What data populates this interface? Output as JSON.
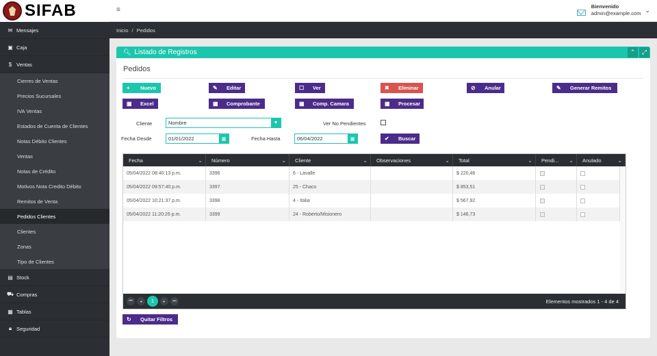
{
  "app": {
    "logo_text": "SIFAB"
  },
  "topbar": {
    "welcome": "Bienvenido",
    "email": "admin@example.com"
  },
  "sidebar": {
    "items": [
      {
        "label": "Mensajes",
        "icon": "envelope-icon"
      },
      {
        "label": "Caja",
        "icon": "cash-icon"
      },
      {
        "label": "Ventas",
        "icon": "dollar-icon"
      },
      {
        "label": "Stock",
        "icon": "chart-icon"
      },
      {
        "label": "Compras",
        "icon": "cart-icon"
      },
      {
        "label": "Tablas",
        "icon": "table-icon"
      },
      {
        "label": "Seguridad",
        "icon": "lock-icon"
      }
    ],
    "ventas_sub": [
      "Cierres de Ventas",
      "Precios Sucursales",
      "IVA Ventas",
      "Estados de Cuenta de Clientes",
      "Notas Débito Clientes",
      "Ventas",
      "Notas de Crédito",
      "Motivos Nota Credito Débito",
      "Remitos de Venta",
      "Pedidos Clientes",
      "Clientes",
      "Zonas",
      "Tipo de Clientes"
    ]
  },
  "breadcrumb": {
    "home": "Inicio",
    "sep": "/",
    "current": "Pedidos"
  },
  "panel": {
    "title": "Listado de Registros",
    "subtitle": "Pedidos"
  },
  "buttons": {
    "nuevo": "Nuevo",
    "editar": "Editar",
    "ver": "Ver",
    "eliminar": "Eliminar",
    "anular": "Anular",
    "generar_remitos": "Generar Remitos",
    "excel": "Excel",
    "comprobante": "Comprobante",
    "comp_camara": "Comp. Camara",
    "procesar": "Procesar",
    "buscar": "Buscar",
    "quitar_filtros": "Quitar Filtros"
  },
  "filters": {
    "cliente_label": "Cliente",
    "cliente_placeholder": "Nombre",
    "ver_no_pendientes_label": "Ver No Pendientes",
    "fecha_desde_label": "Fecha Desde",
    "fecha_desde_value": "01/01/2022",
    "fecha_hasta_label": "Fecha Hasta",
    "fecha_hasta_value": "06/04/2022"
  },
  "grid": {
    "columns": [
      "Fecha",
      "Número",
      "Cliente",
      "Observaciones",
      "Total",
      "Pendi...",
      "Anulado"
    ],
    "rows": [
      {
        "fecha": "05/04/2022 08:40:13 p.m.",
        "numero": "3396",
        "cliente": "6 - Lavalle",
        "obs": "",
        "total": "$ 220,46",
        "pendiente": true,
        "anulado": false
      },
      {
        "fecha": "05/04/2022 09:57:40 p.m.",
        "numero": "3397",
        "cliente": "25 - Chaco",
        "obs": "",
        "total": "$ 853,51",
        "pendiente": true,
        "anulado": false
      },
      {
        "fecha": "05/04/2022 10:21:37 p.m.",
        "numero": "3398",
        "cliente": "4 - Italia",
        "obs": "",
        "total": "$ 567,92",
        "pendiente": true,
        "anulado": false
      },
      {
        "fecha": "05/04/2022 11:20:26 p.m.",
        "numero": "3399",
        "cliente": "24 - Roberto/Misionero",
        "obs": "",
        "total": "$ 146,73",
        "pendiente": true,
        "anulado": false
      }
    ],
    "pager": {
      "current": "1",
      "info": "Elementos mostrados 1 - 4 de 4"
    }
  }
}
